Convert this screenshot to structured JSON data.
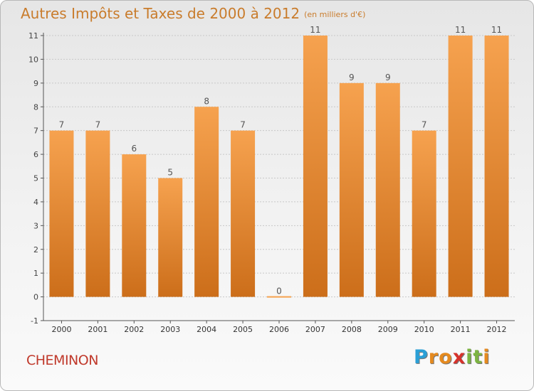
{
  "title": "Autres Impôts et Taxes de 2000 à 2012",
  "subtitle": "(en milliers d'€)",
  "location": "CHEMINON",
  "logo": {
    "letters": [
      {
        "ch": "P",
        "color": "#2a9fd6"
      },
      {
        "ch": "r",
        "color": "#e58a1f"
      },
      {
        "ch": "o",
        "color": "#e58a1f"
      },
      {
        "ch": "x",
        "color": "#d6322b"
      },
      {
        "ch": "i",
        "color": "#7cb342"
      },
      {
        "ch": "t",
        "color": "#7cb342"
      },
      {
        "ch": "i",
        "color": "#e58a1f"
      }
    ]
  },
  "colors": {
    "bar_light": "#f6a24f",
    "bar_dark": "#cc6e1a",
    "title": "#c97c2c",
    "axis": "#555555"
  },
  "chart_data": {
    "type": "bar",
    "categories": [
      "2000",
      "2001",
      "2002",
      "2003",
      "2004",
      "2005",
      "2006",
      "2007",
      "2008",
      "2009",
      "2010",
      "2011",
      "2012"
    ],
    "values": [
      7,
      7,
      6,
      5,
      8,
      7,
      0,
      11,
      9,
      9,
      7,
      11,
      11
    ],
    "ylim": [
      -1,
      11
    ],
    "yticks": [
      -1,
      0,
      1,
      2,
      3,
      4,
      5,
      6,
      7,
      8,
      9,
      10,
      11
    ],
    "ytick_labels": [
      "-1",
      "0",
      "1",
      "2",
      "3",
      "4",
      "5",
      "6",
      "7",
      "8",
      "9",
      "10",
      "11"
    ],
    "grid": true
  }
}
